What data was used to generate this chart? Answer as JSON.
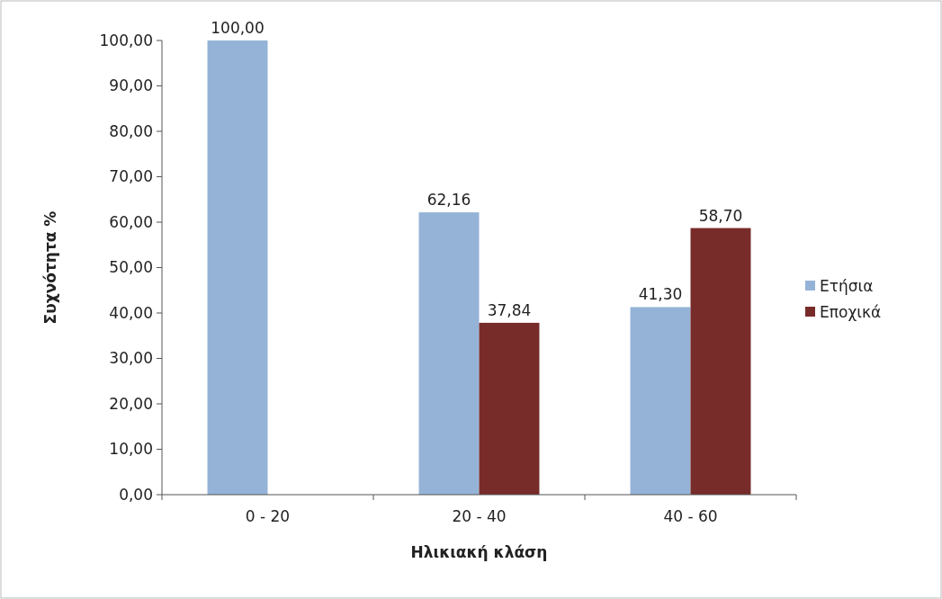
{
  "chart_data": {
    "type": "bar",
    "xlabel": "Ηλικιακή κλάση",
    "ylabel": "Συχνότητα %",
    "categories": [
      "0 - 20",
      "20 - 40",
      "40 - 60"
    ],
    "series": [
      {
        "name": "Ετήσια",
        "color": "#95b3d7",
        "values": [
          100,
          62.16,
          41.3
        ],
        "value_labels": [
          "100,00",
          "62,16",
          "41,30"
        ]
      },
      {
        "name": "Εποχικά",
        "color": "#772c2a",
        "values": [
          0,
          37.84,
          58.7
        ],
        "value_labels": [
          null,
          "37,84",
          "58,70"
        ]
      }
    ],
    "ylim": [
      0,
      100
    ],
    "yticks": [
      {
        "value": 0,
        "label": "0,00"
      },
      {
        "value": 10,
        "label": "10,00"
      },
      {
        "value": 20,
        "label": "20,00"
      },
      {
        "value": 30,
        "label": "30,00"
      },
      {
        "value": 40,
        "label": "40,00"
      },
      {
        "value": 50,
        "label": "50,00"
      },
      {
        "value": 60,
        "label": "60,00"
      },
      {
        "value": 70,
        "label": "70,00"
      },
      {
        "value": 80,
        "label": "80,00"
      },
      {
        "value": 90,
        "label": "90,00"
      },
      {
        "value": 100,
        "label": "100,00"
      }
    ],
    "legend": "right"
  }
}
